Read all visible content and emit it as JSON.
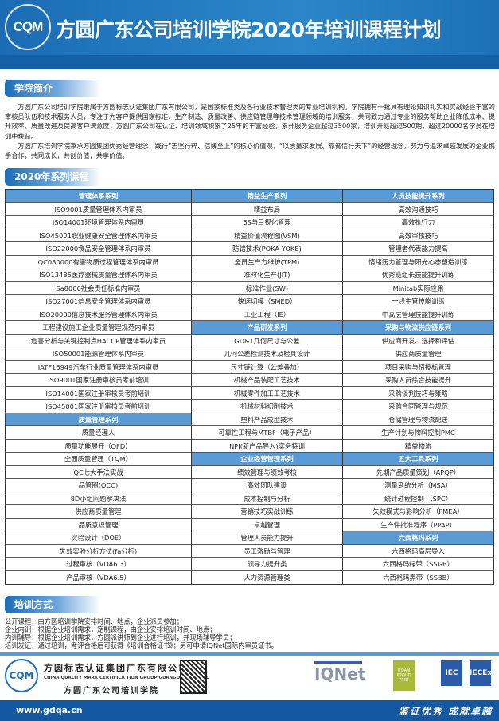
{
  "header": {
    "logo_text": "CQM",
    "title": "方圆广东公司培训学院2020年培训课程计划"
  },
  "intro": {
    "tab_label": "学院简介",
    "paragraphs": [
      "方圆广东公司培训学院隶属于方圆标志认证集团广东有限公司，是国家标准类及各行业技术管理类的专业培训机构。学院拥有一批具有理论知识扎实和实战经验丰富的审核员队伍和技术服务人员，专注于为客户提供国家标准、生产制造、质量改善、供应链管理等技术管理领域的培训服务，共同致力通过专业的服务帮助企业降低成本、提升效率、质量改进及提高客户满意度；方圆广东公司在认证、培训领域积累了25年的丰富经验，累计服务企业超过3500家，培训开班超过500期，超过20000名学员在培训中获益。",
      "方圆广东培训学院秉承方圆集团优秀经营理念，践行“志坚行粹、信臻至上”的核心价值观，“以质量求发展、靠诚信行天下”的经营理念，努力与追求卓越发展的企业携手合作，共同成长，共创价值，共享价值。"
    ]
  },
  "courses": {
    "tab_label": "2020年系列课程",
    "columns": [
      [
        {
          "text": "管理体系系列",
          "header": true
        },
        {
          "text": "ISO9001质量管理体系内审员"
        },
        {
          "text": "ISO14001环境管理体系内审员"
        },
        {
          "text": "ISO45001职业健康安全管理体系内审员"
        },
        {
          "text": "ISO22000食品安全管理体系内审员"
        },
        {
          "text": "QC080000有害物质过程管理体系内审员"
        },
        {
          "text": "ISO13485医疗器械质量管理体系内审员"
        },
        {
          "text": "Sa8000社会责任标准内审员"
        },
        {
          "text": "ISO27001信息安全管理体系内审员"
        },
        {
          "text": "ISO20000信息技术服务管理体系内审员"
        },
        {
          "text": "工程建设施工企业质量管理规范内审员"
        },
        {
          "text": "危害分析与关键控制点HACCP管理体系内审员"
        },
        {
          "text": "ISO50001能源管理体系内审员"
        },
        {
          "text": "IATF16949汽车行业质量管理体系内审员"
        },
        {
          "text": "ISO9001国家注册审核员考前培训"
        },
        {
          "text": "ISO14001国家注册审核员考前培训"
        },
        {
          "text": "ISO45001国家注册审核员考前培训"
        },
        {
          "text": "质量管理系列",
          "header": true
        },
        {
          "text": "质量经理人"
        },
        {
          "text": "质量功能展开（QFD）"
        },
        {
          "text": "全面质量管理（TQM）"
        },
        {
          "text": "QC七大手法实战"
        },
        {
          "text": "品管圈(QCC)"
        },
        {
          "text": "8D小组问题解决法"
        },
        {
          "text": "供应商质量管理"
        },
        {
          "text": "品质意识管理"
        },
        {
          "text": "实验设计（DOE）"
        },
        {
          "text": "失效实验分析方法(fa分析)"
        },
        {
          "text": "过程审核（VDA6.3）"
        },
        {
          "text": "产品审核（VDA6.5）"
        }
      ],
      [
        {
          "text": "精益生产系列",
          "header": true
        },
        {
          "text": "精益布局"
        },
        {
          "text": "6S与目视化管理"
        },
        {
          "text": "精益价值流程图(VSM)"
        },
        {
          "text": "防错技术(POKA YOKE)"
        },
        {
          "text": "全员生产力维护(TPM)"
        },
        {
          "text": "准时化生产(JIT)"
        },
        {
          "text": "标准作业(SW)"
        },
        {
          "text": "快速切模（SMED）"
        },
        {
          "text": "工业工程（IE）"
        },
        {
          "text": "产品研发系列",
          "header": true
        },
        {
          "text": "GD&T几何尺寸与公差"
        },
        {
          "text": "几何公差检测技术及检具设计"
        },
        {
          "text": "尺寸链计算（公差叠加）"
        },
        {
          "text": "机械产品装配工艺技术"
        },
        {
          "text": "机械零件加工工艺技术"
        },
        {
          "text": "机械材料切削技术"
        },
        {
          "text": "塑料产品成型技术"
        },
        {
          "text": "可靠性工程与MTBF（电子产品）"
        },
        {
          "text": "NPI(新产品导入)实务特训"
        },
        {
          "text": "企业经营管理系列",
          "header": true
        },
        {
          "text": "绩效管理与绩效考核"
        },
        {
          "text": "高效团队建设"
        },
        {
          "text": "成本控制与分析"
        },
        {
          "text": "营销技巧实战训练"
        },
        {
          "text": "卓越管理"
        },
        {
          "text": "管理人员能力提升"
        },
        {
          "text": "员工激励与管理"
        },
        {
          "text": "领导力提升类"
        },
        {
          "text": "人力资源管理类"
        }
      ],
      [
        {
          "text": "人员技能提升系列",
          "header": true
        },
        {
          "text": "高效沟通技巧"
        },
        {
          "text": "高效执行力"
        },
        {
          "text": "高效审核技巧"
        },
        {
          "text": "管理者代表能力提高"
        },
        {
          "text": "情绪压力管理与阳光心态塑造训练"
        },
        {
          "text": "优秀班组长技能提升训练"
        },
        {
          "text": "Minitab实际应用"
        },
        {
          "text": "一线主管技能训练"
        },
        {
          "text": "中高层管理技能提升训练"
        },
        {
          "text": "采购与物流供应链系列",
          "header": true
        },
        {
          "text": "供应商开发、选择和评估"
        },
        {
          "text": "供应商质量管理"
        },
        {
          "text": "项目采购与招投标管理"
        },
        {
          "text": "采购人员综合技能提升"
        },
        {
          "text": "采购谈判技巧与策略"
        },
        {
          "text": "采购合同管理与规范"
        },
        {
          "text": "仓储管理与物流配送"
        },
        {
          "text": "生产计划与物料控制PMC"
        },
        {
          "text": "精益物流"
        },
        {
          "text": "五大工具系列",
          "header": true
        },
        {
          "text": "先期产品质量策划（APQP）"
        },
        {
          "text": "测量系统分析（MSA）"
        },
        {
          "text": "统计过程控制 （SPC）"
        },
        {
          "text": "失效模式与影响分析（FMEA）"
        },
        {
          "text": "生产件批准程序（PPAP）"
        },
        {
          "text": "六西格玛系列",
          "header": true
        },
        {
          "text": "六西格玛高层导入"
        },
        {
          "text": "六西格玛绿带（SSGB）"
        },
        {
          "text": "六西格玛黑带（SSBB）"
        }
      ]
    ],
    "header_color": "#5b9bd5"
  },
  "methods": {
    "tab_label": "培训方式",
    "lines": [
      "公开课程：由方圆培训学院安排时间、地点，企业派员参加；",
      "企业内训：根据企业培训需求，定制课程，由企业安排培训时间、地点；",
      "内训辅导：根据企业培训需求，方圆派讲师到企业进行培训，并现场辅导学员；",
      "培训发证：通过培训，考评合格后可获得《培训合格证书》；另可申请IQNet国际内审员证书。"
    ]
  },
  "footer": {
    "logo_text": "CQM",
    "company_cn": "方圆标志认证集团广东有限公司",
    "company_en": "CHINA QUALITY MARK CERTIFICA TION GROUP GUANGDONG CO,LTD",
    "academy": "方圆广东公司培训学院",
    "partner_logos": [
      "IQNet",
      "IFOAM PROUD PART",
      "IEC",
      "IECEx"
    ],
    "url": "www.gdqa.cn",
    "slogan": "鉴证优秀 成就卓越",
    "brand_color": "#1458a2"
  }
}
